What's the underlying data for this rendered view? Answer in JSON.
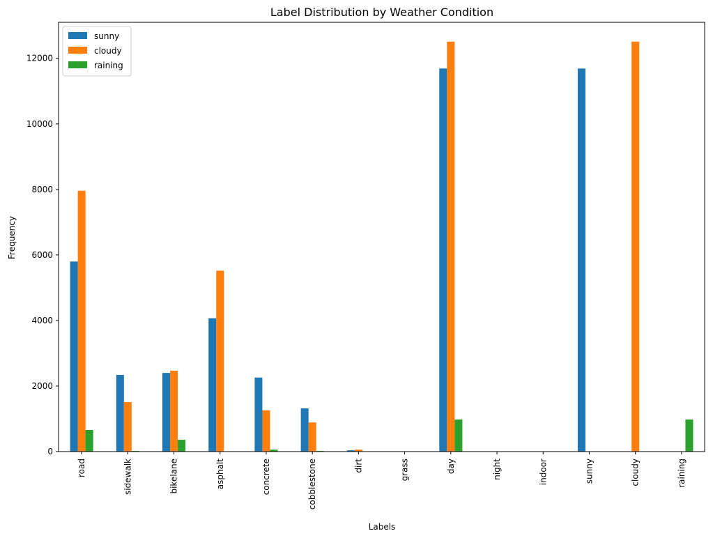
{
  "chart_data": {
    "type": "bar",
    "title": "Label Distribution by Weather Condition",
    "xlabel": "Labels",
    "ylabel": "Frequency",
    "ylim": [
      0,
      13100
    ],
    "yticks": [
      0,
      2000,
      4000,
      6000,
      8000,
      10000,
      12000
    ],
    "yticklabels": [
      "0",
      "2000",
      "4000",
      "6000",
      "8000",
      "10000",
      "12000"
    ],
    "legend_placement": "top-left",
    "grid": false,
    "categories": [
      "road",
      "sidewalk",
      "bikelane",
      "asphalt",
      "concrete",
      "cobblestone",
      "dirt",
      "grass",
      "day",
      "night",
      "indoor",
      "sunny",
      "cloudy",
      "raining"
    ],
    "series": [
      {
        "name": "sunny",
        "color": "#1f77b4",
        "values": [
          5800,
          2340,
          2400,
          4070,
          2260,
          1320,
          40,
          0,
          11690,
          0,
          0,
          11690,
          0,
          0
        ]
      },
      {
        "name": "cloudy",
        "color": "#ff7f0e",
        "values": [
          7960,
          1510,
          2470,
          5520,
          1260,
          890,
          60,
          0,
          12510,
          0,
          0,
          0,
          12510,
          0
        ]
      },
      {
        "name": "raining",
        "color": "#2ca02c",
        "values": [
          660,
          20,
          360,
          0,
          60,
          20,
          0,
          0,
          980,
          0,
          0,
          0,
          0,
          980
        ]
      }
    ]
  }
}
